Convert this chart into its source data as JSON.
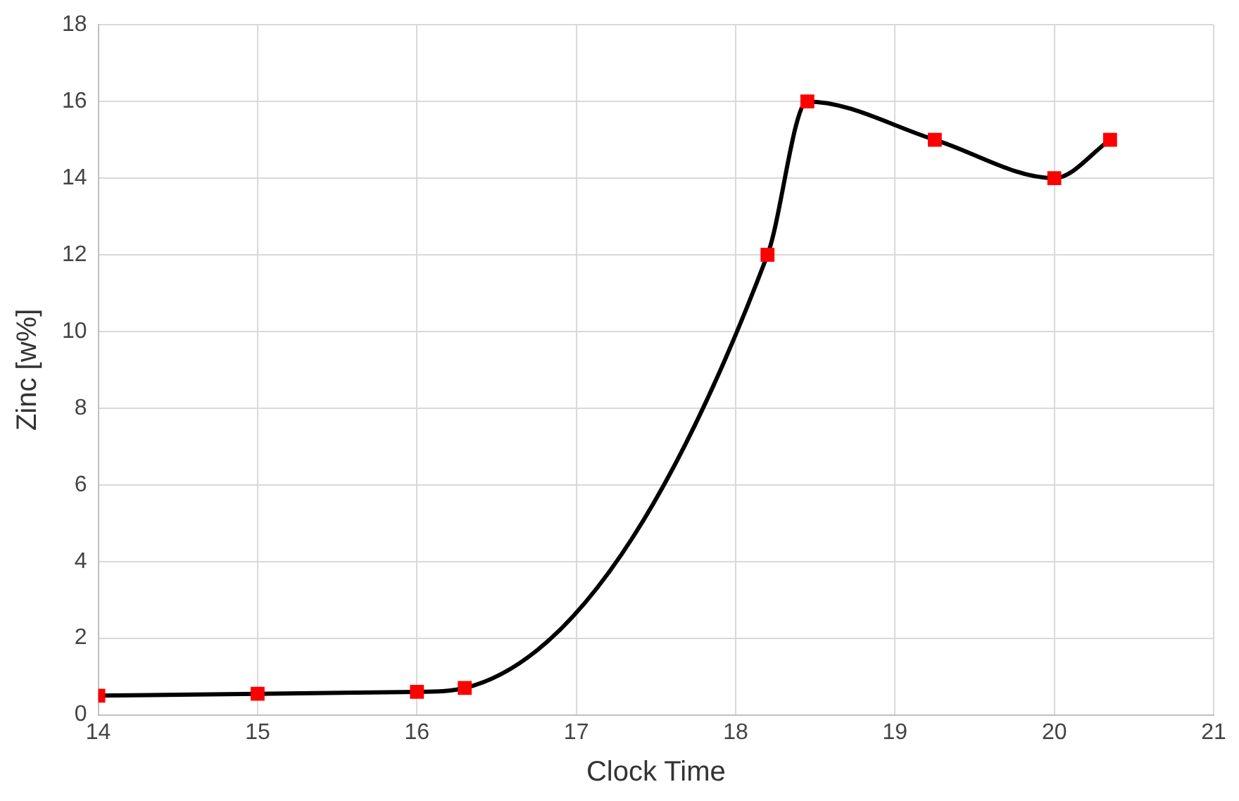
{
  "chart_data": {
    "type": "line",
    "xlabel": "Clock Time",
    "ylabel": "Zinc [w%]",
    "x": [
      14,
      15,
      16,
      16.3,
      18.2,
      18.45,
      19.25,
      20,
      20.35
    ],
    "series": [
      {
        "color": "#000000",
        "colors": [
          "#ff0000",
          "#ff0000",
          "#ff0000",
          "#ff0000",
          "#ff0000",
          "#ff0000",
          "#ff0000",
          "#ff0000",
          "#ff0000"
        ],
        "values": [
          0.5,
          0.55,
          0.6,
          0.7,
          12,
          16,
          15,
          14,
          15
        ]
      }
    ],
    "marker": "square",
    "line_style": "solid",
    "xlim": [
      14,
      21
    ],
    "xticks": [
      14,
      15,
      16,
      17,
      18,
      19,
      20,
      21
    ],
    "ylim": [
      0,
      18
    ],
    "yticks": [
      0,
      2,
      4,
      6,
      8,
      10,
      12,
      14,
      16,
      18
    ],
    "grid": true,
    "legend": false
  }
}
